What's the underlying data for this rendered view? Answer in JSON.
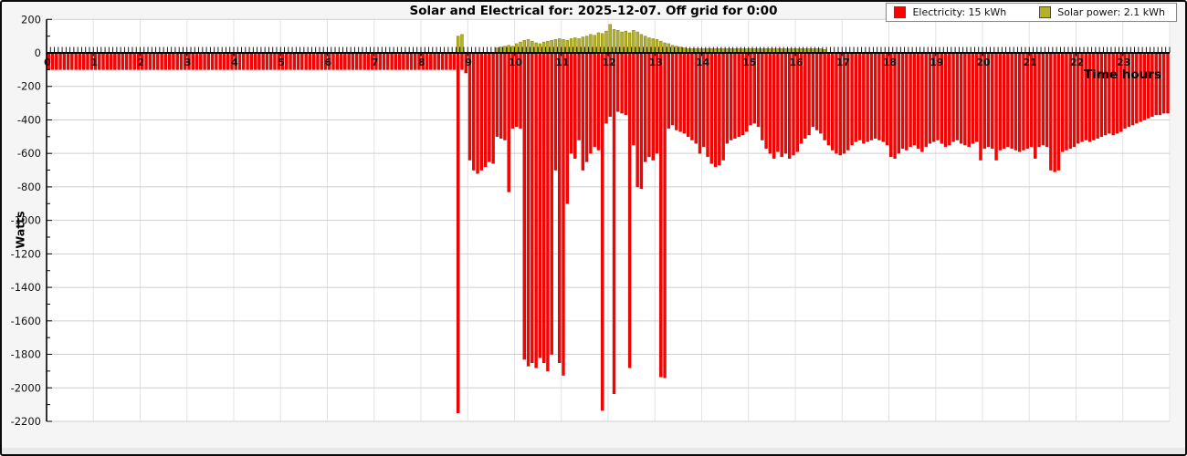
{
  "title": "Solar and Electrical for: 2025-12-07. Off grid for 0:00",
  "legend": {
    "items": [
      {
        "label": "Electricity: 15 kWh",
        "color": "#ff0000"
      },
      {
        "label": "Solar power: 2.1 kWh",
        "color": "#b4b122"
      }
    ]
  },
  "chart_data": {
    "type": "bar",
    "title": "Solar and Electrical for: 2025-12-07. Off grid for 0:00",
    "xlabel": "Time hours",
    "ylabel": "Watts",
    "ylim": [
      -2200,
      200
    ],
    "y_tick_step": 200,
    "y_minor_step": 100,
    "interval_minutes": 5,
    "grid": true,
    "legend_position": "top-right",
    "x_tick_labels": [
      "0",
      "1",
      "2",
      "3",
      "4",
      "5",
      "6",
      "7",
      "8",
      "9",
      "10",
      "11",
      "12",
      "13",
      "14",
      "15",
      "16",
      "17",
      "18",
      "19",
      "20",
      "21",
      "22",
      "23"
    ],
    "y_tick_labels": [
      "200",
      "0",
      "-200",
      "-400",
      "-600",
      "-800",
      "-1000",
      "-1200",
      "-1400",
      "-1600",
      "-1800",
      "-2000",
      "-2200"
    ],
    "series": [
      {
        "name": "Electricity: 15 kWh",
        "color": "#ff0000",
        "edge": "#c40000",
        "values": [
          -100,
          -100,
          -100,
          -100,
          -100,
          -100,
          -100,
          -100,
          -100,
          -100,
          -100,
          -100,
          -100,
          -100,
          -100,
          -100,
          -100,
          -100,
          -100,
          -100,
          -100,
          -100,
          -100,
          -100,
          -100,
          -100,
          -100,
          -100,
          -100,
          -100,
          -100,
          -100,
          -100,
          -100,
          -100,
          -100,
          -100,
          -100,
          -100,
          -100,
          -100,
          -100,
          -100,
          -100,
          -100,
          -100,
          -100,
          -100,
          -100,
          -100,
          -100,
          -100,
          -100,
          -100,
          -100,
          -100,
          -100,
          -100,
          -100,
          -100,
          -100,
          -100,
          -100,
          -100,
          -100,
          -100,
          -100,
          -100,
          -100,
          -100,
          -100,
          -100,
          -100,
          -100,
          -100,
          -100,
          -100,
          -100,
          -100,
          -100,
          -100,
          -100,
          -100,
          -100,
          -100,
          -100,
          -100,
          -100,
          -100,
          -100,
          -100,
          -100,
          -100,
          -100,
          -100,
          -100,
          -100,
          -100,
          -100,
          -100,
          -100,
          -100,
          -100,
          -100,
          -100,
          -2150,
          -100,
          -120,
          -640,
          -700,
          -720,
          -700,
          -680,
          -650,
          -660,
          -500,
          -510,
          -520,
          -830,
          -450,
          -440,
          -450,
          -1830,
          -1870,
          -1850,
          -1880,
          -1820,
          -1850,
          -1900,
          -1800,
          -700,
          -1850,
          -1925,
          -900,
          -600,
          -630,
          -520,
          -700,
          -650,
          -600,
          -560,
          -580,
          -2135,
          -420,
          -380,
          -2035,
          -350,
          -360,
          -370,
          -1880,
          -550,
          -800,
          -810,
          -650,
          -620,
          -640,
          -600,
          -1935,
          -1940,
          -450,
          -430,
          -460,
          -470,
          -480,
          -500,
          -520,
          -540,
          -600,
          -560,
          -620,
          -660,
          -680,
          -670,
          -640,
          -540,
          -520,
          -510,
          -500,
          -490,
          -470,
          -430,
          -420,
          -440,
          -520,
          -570,
          -600,
          -630,
          -590,
          -620,
          -600,
          -630,
          -610,
          -590,
          -540,
          -510,
          -490,
          -440,
          -460,
          -480,
          -520,
          -550,
          -580,
          -600,
          -610,
          -600,
          -580,
          -550,
          -530,
          -520,
          -540,
          -530,
          -520,
          -510,
          -520,
          -530,
          -550,
          -620,
          -630,
          -600,
          -570,
          -580,
          -560,
          -550,
          -570,
          -590,
          -560,
          -540,
          -530,
          -520,
          -540,
          -560,
          -550,
          -530,
          -520,
          -540,
          -550,
          -560,
          -540,
          -530,
          -640,
          -570,
          -560,
          -570,
          -640,
          -580,
          -570,
          -560,
          -570,
          -580,
          -590,
          -580,
          -570,
          -560,
          -630,
          -560,
          -550,
          -560,
          -700,
          -710,
          -700,
          -590,
          -580,
          -570,
          -560,
          -540,
          -530,
          -520,
          -530,
          -520,
          -510,
          -500,
          -490,
          -480,
          -490,
          -480,
          -470,
          -450,
          -440,
          -430,
          -420,
          -410,
          -400,
          -390,
          -380,
          -370,
          -370,
          -360,
          -360
        ]
      },
      {
        "name": "Solar power: 2.1 kWh",
        "color": "#b4b122",
        "edge": "#7f7c10",
        "values": [
          0,
          0,
          0,
          0,
          0,
          0,
          0,
          0,
          0,
          0,
          0,
          0,
          0,
          0,
          0,
          0,
          0,
          0,
          0,
          0,
          0,
          0,
          0,
          0,
          0,
          0,
          0,
          0,
          0,
          0,
          0,
          0,
          0,
          0,
          0,
          0,
          0,
          0,
          0,
          0,
          0,
          0,
          0,
          0,
          0,
          0,
          0,
          0,
          0,
          0,
          0,
          0,
          0,
          0,
          0,
          0,
          0,
          0,
          0,
          0,
          0,
          0,
          0,
          0,
          0,
          0,
          0,
          0,
          0,
          0,
          0,
          0,
          0,
          0,
          0,
          0,
          0,
          0,
          0,
          0,
          0,
          0,
          0,
          0,
          0,
          0,
          0,
          0,
          0,
          0,
          0,
          0,
          0,
          0,
          0,
          0,
          0,
          0,
          0,
          0,
          0,
          0,
          0,
          0,
          0,
          100,
          110,
          0,
          0,
          0,
          0,
          0,
          0,
          0,
          0,
          30,
          35,
          40,
          45,
          40,
          55,
          65,
          75,
          80,
          70,
          60,
          55,
          65,
          70,
          75,
          80,
          85,
          80,
          75,
          85,
          90,
          85,
          95,
          100,
          110,
          105,
          120,
          115,
          130,
          170,
          140,
          135,
          125,
          130,
          120,
          135,
          125,
          110,
          100,
          90,
          85,
          80,
          70,
          60,
          55,
          45,
          40,
          35,
          30,
          25,
          25,
          25,
          25,
          25,
          25,
          25,
          25,
          25,
          25,
          25,
          25,
          25,
          25,
          25,
          25,
          25,
          25,
          25,
          25,
          25,
          25,
          25,
          25,
          25,
          25,
          25,
          25,
          25,
          25,
          25,
          25,
          25,
          25,
          25,
          20,
          0,
          0,
          0,
          0,
          0,
          0,
          0,
          0,
          0,
          0,
          0,
          0,
          0,
          0,
          0,
          0,
          0,
          0,
          0,
          0,
          0,
          0,
          0,
          0,
          0,
          0,
          0,
          0,
          0,
          0,
          0,
          0,
          0,
          0,
          0,
          0,
          0,
          0,
          0,
          0,
          0,
          0,
          0,
          0,
          0,
          0,
          0,
          0,
          0,
          0,
          0,
          0,
          0,
          0,
          0,
          0,
          0,
          0,
          0,
          0,
          0,
          0,
          0,
          0,
          0,
          0,
          0,
          0,
          0,
          0,
          0,
          0,
          0,
          0,
          0,
          0,
          0,
          0,
          0,
          0,
          0,
          0,
          0,
          0,
          0,
          0,
          0,
          0
        ]
      }
    ],
    "colors": {
      "plot_background": "#ffffff",
      "outer_background": "#f5f5f5",
      "grid_horizontal": "#cfcfcf",
      "grid_vertical": "#e3e3e3",
      "axis": "#000000"
    }
  }
}
